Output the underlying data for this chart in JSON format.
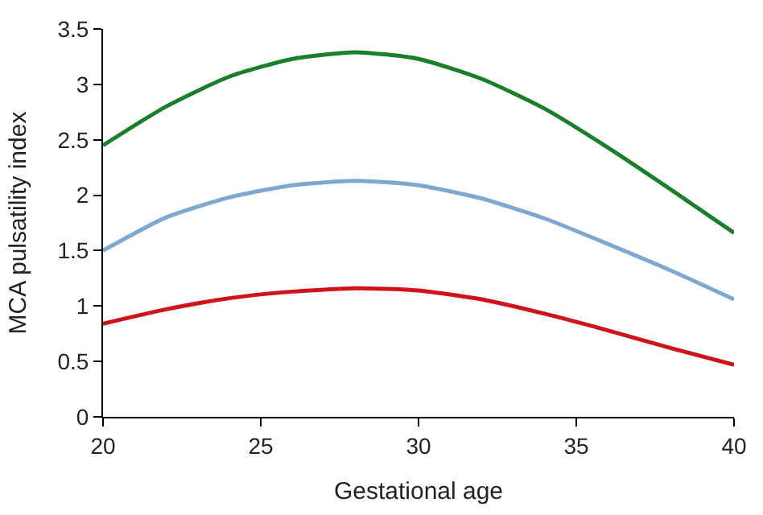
{
  "chart_data": {
    "type": "line",
    "xlabel": "Gestational age",
    "ylabel": "MCA pulsatility index",
    "x": [
      20,
      22,
      24,
      26,
      28,
      30,
      32,
      34,
      36,
      38,
      40
    ],
    "series": [
      {
        "color": "#1a7f2a",
        "values": [
          2.45,
          2.8,
          3.07,
          3.23,
          3.29,
          3.23,
          3.05,
          2.78,
          2.43,
          2.05,
          1.66
        ]
      },
      {
        "color": "#7fa8d0",
        "values": [
          1.5,
          1.8,
          1.98,
          2.09,
          2.13,
          2.09,
          1.97,
          1.79,
          1.56,
          1.32,
          1.06
        ]
      },
      {
        "color": "#d0121b",
        "values": [
          0.84,
          0.97,
          1.07,
          1.13,
          1.16,
          1.14,
          1.06,
          0.93,
          0.78,
          0.62,
          0.47
        ]
      }
    ],
    "xlim": [
      20,
      40
    ],
    "xticks": [
      20,
      25,
      30,
      35,
      40
    ],
    "ylim": [
      0,
      3.5
    ],
    "yticks": [
      0,
      0.5,
      1,
      1.5,
      2,
      2.5,
      3,
      3.5
    ],
    "legend": false,
    "marker": "none",
    "line_style": "solid"
  }
}
